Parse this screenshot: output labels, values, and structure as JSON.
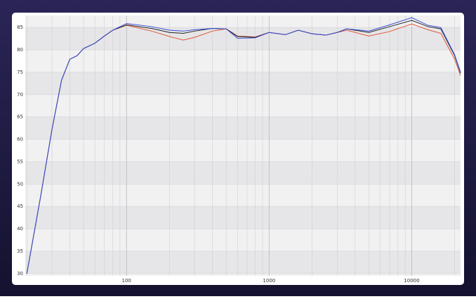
{
  "chart_data": {
    "type": "line",
    "xscale": "log",
    "x": [
      20,
      25,
      30,
      35,
      40,
      45,
      50,
      60,
      70,
      80,
      100,
      150,
      200,
      250,
      300,
      400,
      500,
      600,
      800,
      1000,
      1300,
      1600,
      2000,
      2500,
      3000,
      3500,
      5000,
      7000,
      10000,
      13000,
      16000,
      20000,
      22000
    ],
    "series": [
      {
        "color": "#e0553a",
        "values": [
          30,
          47.3,
          62.2,
          73.2,
          77.9,
          78.7,
          80.3,
          81.5,
          83.1,
          84.4,
          85.5,
          84.2,
          83.0,
          82.2,
          82.8,
          84.2,
          84.7,
          83.1,
          82.9,
          83.9,
          83.4,
          84.4,
          83.6,
          83.3,
          83.9,
          84.4,
          83.1,
          84.1,
          85.8,
          84.5,
          83.7,
          77.9,
          74.3
        ]
      },
      {
        "color": "#222222",
        "values": [
          30,
          47.3,
          62.2,
          73.2,
          77.9,
          78.7,
          80.3,
          81.5,
          83.1,
          84.4,
          85.6,
          84.8,
          83.9,
          83.7,
          84.2,
          84.8,
          84.7,
          83.0,
          82.8,
          83.9,
          83.4,
          84.4,
          83.6,
          83.3,
          83.9,
          84.7,
          83.9,
          85.2,
          86.6,
          85.2,
          84.7,
          78.7,
          74.8
        ]
      },
      {
        "color": "#3a4fd8",
        "values": [
          30,
          47.3,
          62.2,
          73.2,
          77.9,
          78.7,
          80.3,
          81.5,
          83.1,
          84.4,
          85.9,
          85.2,
          84.4,
          84.2,
          84.5,
          84.8,
          84.7,
          82.6,
          82.7,
          83.9,
          83.4,
          84.4,
          83.6,
          83.3,
          83.9,
          84.7,
          84.2,
          85.6,
          87.2,
          85.5,
          85.0,
          78.9,
          75.0
        ]
      }
    ],
    "xlim": [
      19.5,
      22000
    ],
    "ylim": [
      29.5,
      87.7
    ],
    "xticks": [
      100,
      1000,
      10000
    ],
    "xminor_ticks": [
      20,
      30,
      40,
      50,
      60,
      70,
      80,
      90,
      200,
      300,
      400,
      500,
      600,
      700,
      800,
      900,
      2000,
      3000,
      4000,
      5000,
      6000,
      7000,
      8000,
      9000,
      20000
    ],
    "yticks": [
      30,
      35,
      40,
      45,
      50,
      55,
      60,
      65,
      70,
      75,
      80,
      85
    ],
    "grid": true,
    "band_colors": [
      "#e6e6e8",
      "#f1f1f2"
    ]
  }
}
